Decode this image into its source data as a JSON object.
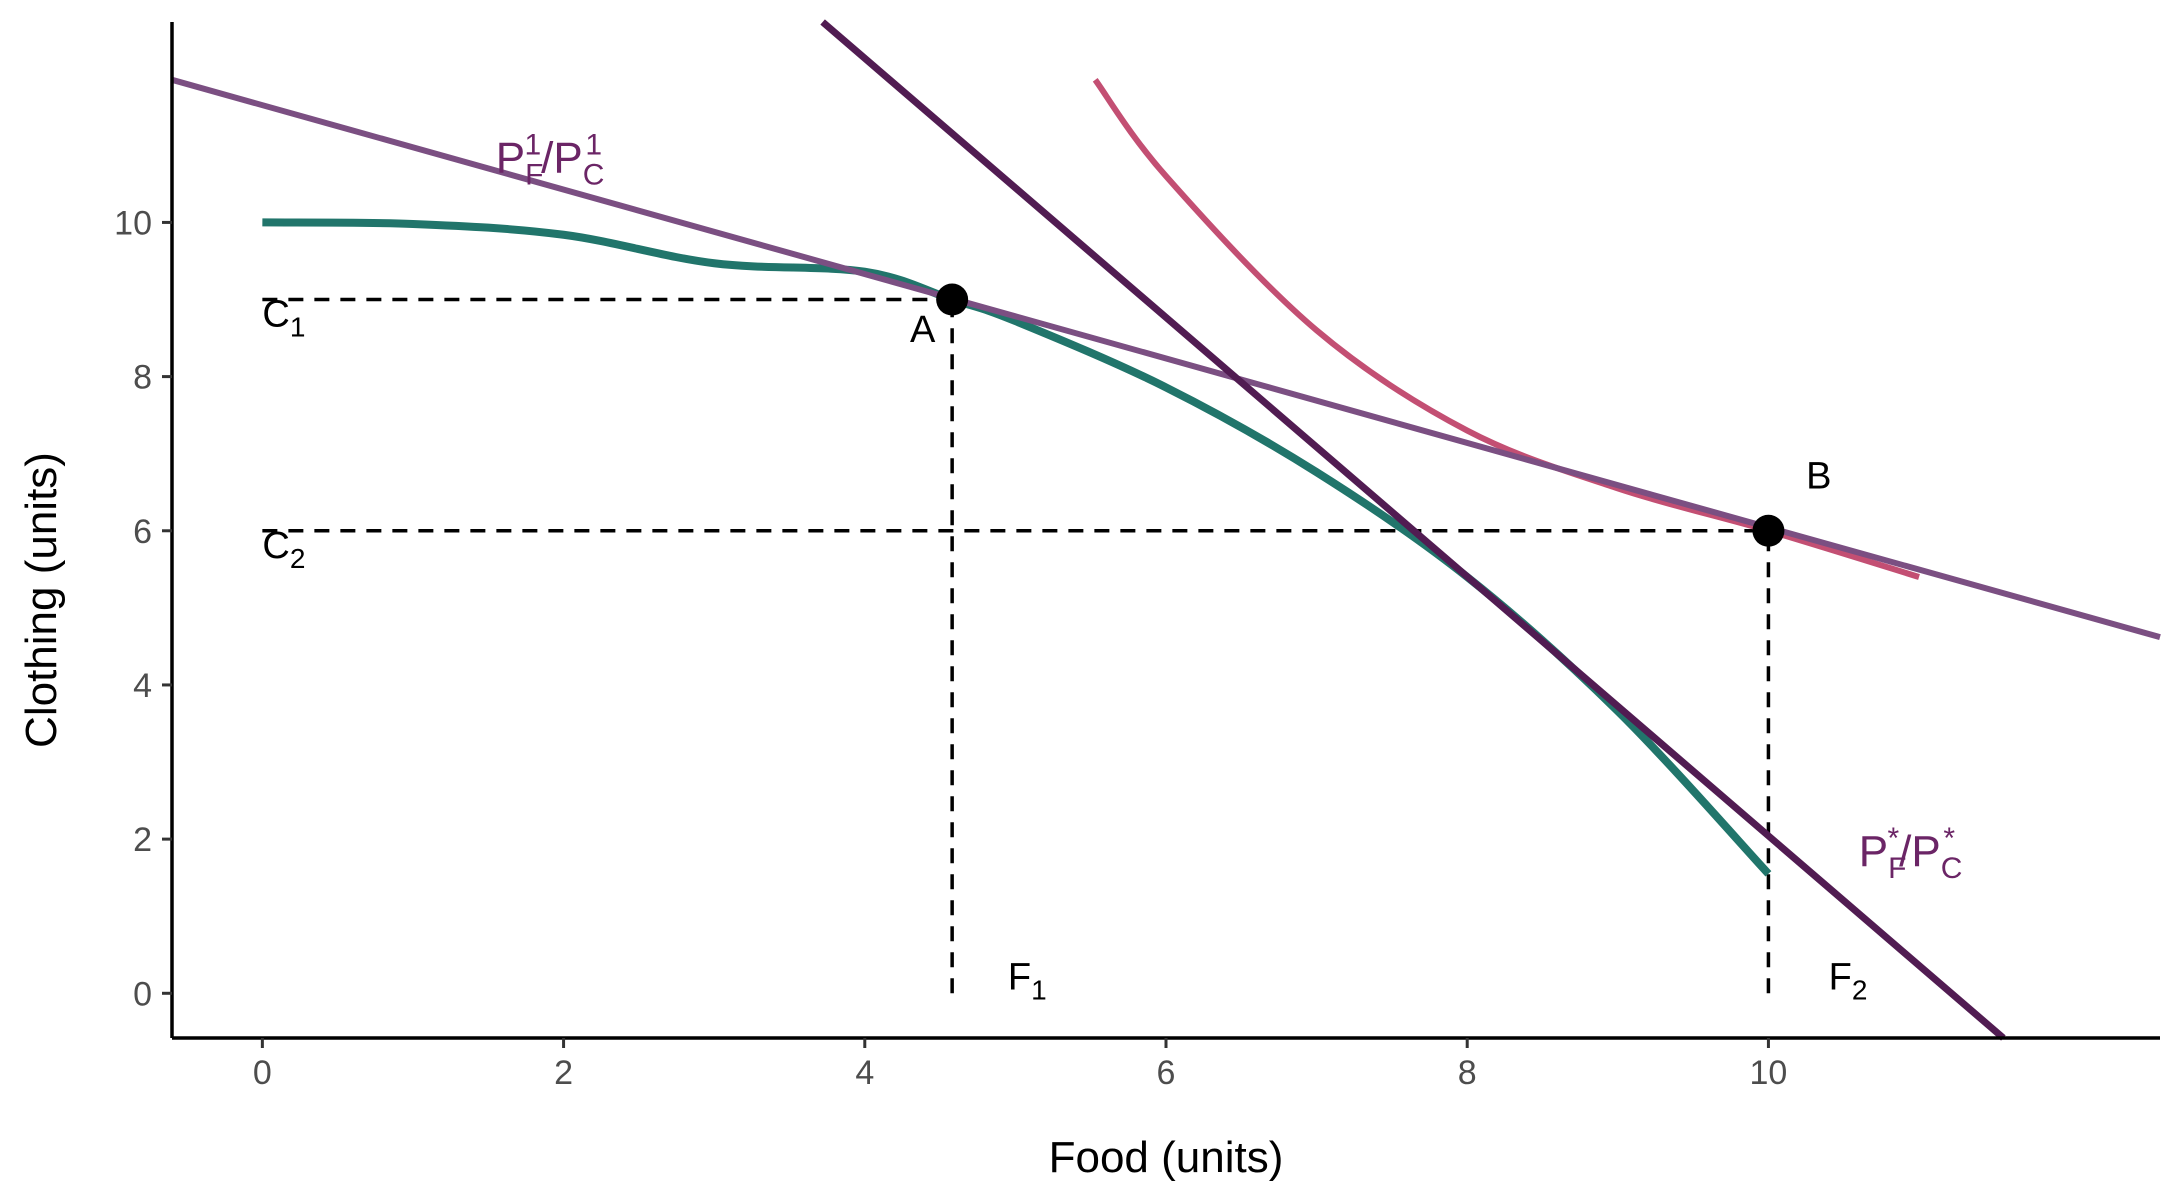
{
  "chart_data": {
    "type": "line",
    "xlabel": "Food (units)",
    "ylabel": "Clothing (units)",
    "xlim": [
      -0.6,
      12.6
    ],
    "ylim": [
      -0.58,
      12.6
    ],
    "x_ticks": [
      0,
      2,
      4,
      6,
      8,
      10
    ],
    "y_ticks": [
      0,
      2,
      4,
      6,
      8,
      10
    ],
    "grid": false,
    "colors": {
      "ppf": "#21756b",
      "price_line_1": "#7b4f82",
      "price_line_star": "#511c52",
      "indifference": "#c34f73",
      "point": "#000000",
      "guide": "#000000",
      "price_label": "#6b2566"
    },
    "series": [
      {
        "key": "ppf",
        "x_range": [
          0,
          10
        ],
        "points": [
          [
            0,
            10
          ],
          [
            1,
            9.98
          ],
          [
            2,
            9.84
          ],
          [
            3,
            9.47
          ],
          [
            4,
            9.36
          ],
          [
            4.58,
            9.0
          ],
          [
            5,
            8.72
          ],
          [
            6,
            7.86
          ],
          [
            7,
            6.76
          ],
          [
            8,
            5.4
          ],
          [
            9,
            3.66
          ],
          [
            10,
            1.55
          ]
        ]
      },
      {
        "key": "price_line_1",
        "points": [
          [
            -0.6,
            11.85
          ],
          [
            12.6,
            4.62
          ]
        ]
      },
      {
        "key": "price_line_star",
        "points": [
          [
            3.72,
            12.6
          ],
          [
            11.56,
            -0.58
          ]
        ]
      },
      {
        "key": "indifference",
        "points": [
          [
            5.53,
            11.85
          ],
          [
            6,
            10.6
          ],
          [
            7,
            8.6
          ],
          [
            8,
            7.3
          ],
          [
            9,
            6.55
          ],
          [
            10,
            6.0
          ],
          [
            11,
            5.4
          ]
        ]
      }
    ],
    "points": [
      {
        "label": "A",
        "x": 4.58,
        "y": 9.0
      },
      {
        "label": "B",
        "x": 10,
        "y": 6.0
      }
    ],
    "guides": [
      {
        "orientation": "h",
        "y": 9.0,
        "x_from": 0,
        "x_to": 4.58
      },
      {
        "orientation": "h",
        "y": 6.0,
        "x_from": 0,
        "x_to": 10
      },
      {
        "orientation": "v",
        "x": 4.58,
        "y_from": 0,
        "y_to": 9.0
      },
      {
        "orientation": "v",
        "x": 10,
        "y_from": 0,
        "y_to": 6.0
      }
    ],
    "annotations": [
      {
        "key": "c1",
        "main": "C",
        "sub": "1",
        "x": 0,
        "y": 8.65
      },
      {
        "key": "c2",
        "main": "C",
        "sub": "2",
        "x": 0,
        "y": 5.65
      },
      {
        "key": "f1",
        "main": "F",
        "sub": "1",
        "x": 4.95,
        "y": 0.05
      },
      {
        "key": "f2",
        "main": "F",
        "sub": "2",
        "x": 10.4,
        "y": 0.05
      },
      {
        "key": "a",
        "main": "A",
        "x": 4.3,
        "y": 8.45
      },
      {
        "key": "b",
        "main": "B",
        "x": 10.25,
        "y": 6.55
      }
    ],
    "price_labels": [
      {
        "key": "p1",
        "text": [
          "P",
          "F",
          "1",
          "/P",
          "C",
          "1"
        ],
        "x": 1.55,
        "y": 10.65
      },
      {
        "key": "pstar",
        "text": [
          "P",
          "F",
          "*",
          "/P",
          "C",
          "*"
        ],
        "x": 10.6,
        "y": 1.65
      }
    ]
  }
}
